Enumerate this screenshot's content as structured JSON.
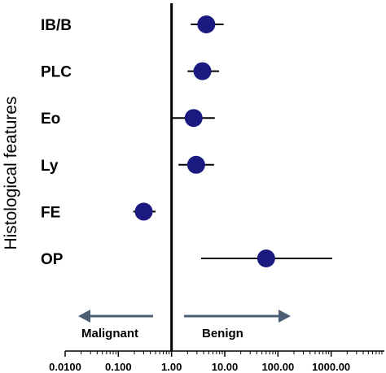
{
  "chart_data": {
    "type": "scatter",
    "ylabel": "Histological features",
    "xscale": "log",
    "xlim": [
      0.01,
      10000
    ],
    "reference_line_x": 1,
    "xticks": [
      0.01,
      0.1,
      1,
      10,
      100,
      1000
    ],
    "xtick_labels": [
      "0.0100",
      "0.100",
      "1.00",
      "10.00",
      "100.00",
      "1000.00"
    ],
    "categories": [
      "IB/B",
      "PLC",
      "Eo",
      "Ly",
      "FE",
      "OP"
    ],
    "estimates": [
      4.5,
      3.8,
      2.6,
      2.9,
      0.3,
      60
    ],
    "ci_lower": [
      2.3,
      2.0,
      1.05,
      1.35,
      0.19,
      3.6
    ],
    "ci_upper": [
      9.5,
      7.8,
      6.5,
      6.3,
      0.5,
      1050
    ],
    "marker_color": "#1a1a80",
    "line_color": "#000000",
    "arrow_color": "#4a5f73",
    "direction_left": "Malignant",
    "direction_right": "Benign"
  }
}
